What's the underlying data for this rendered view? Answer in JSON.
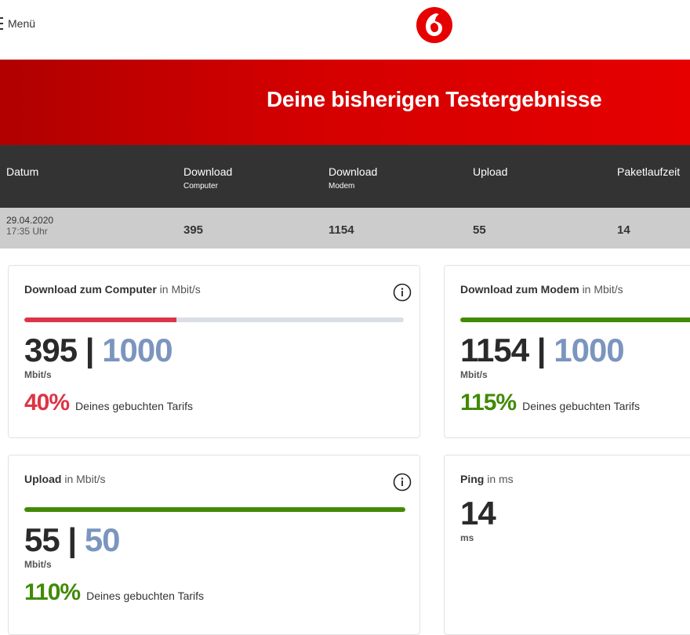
{
  "header": {
    "menu_label": "Menü",
    "logo": "vodafone-logo"
  },
  "hero": {
    "title": "Deine bisherigen Testergebnisse"
  },
  "table": {
    "headers": [
      {
        "label": "Datum",
        "sub": ""
      },
      {
        "label": "Download",
        "sub": "Computer"
      },
      {
        "label": "Download",
        "sub": "Modem"
      },
      {
        "label": "Upload",
        "sub": ""
      },
      {
        "label": "Paketlaufzeit",
        "sub": ""
      }
    ],
    "row": {
      "date": "29.04.2020",
      "time": "17:35 Uhr",
      "download_computer": "395",
      "download_modem": "1154",
      "upload": "55",
      "ping": "14"
    }
  },
  "cards": [
    {
      "title": "Download zum Computer",
      "unit_label": "in Mbit/s",
      "value": "395",
      "separator": "|",
      "tarif": "1000",
      "unit": "Mbit/s",
      "percent": "40%",
      "percent_text": "Deines gebuchten Tarifs",
      "progress": 0.4,
      "color": "#dc3545"
    },
    {
      "title": "Download zum Modem",
      "unit_label": "in Mbit/s",
      "value": "1154",
      "separator": "|",
      "tarif": "1000",
      "unit": "Mbit/s",
      "percent": "115%",
      "percent_text": "Deines gebuchten Tarifs",
      "progress": 1.0,
      "color": "#428a06"
    },
    {
      "title": "Upload",
      "unit_label": "in Mbit/s",
      "value": "55",
      "separator": "|",
      "tarif": "50",
      "unit": "Mbit/s",
      "percent": "110%",
      "percent_text": "Deines gebuchten Tarifs",
      "progress": 1.0,
      "color": "#428a06"
    },
    {
      "title": "Ping",
      "unit_label": "in ms",
      "value": "14",
      "unit": "ms"
    }
  ]
}
